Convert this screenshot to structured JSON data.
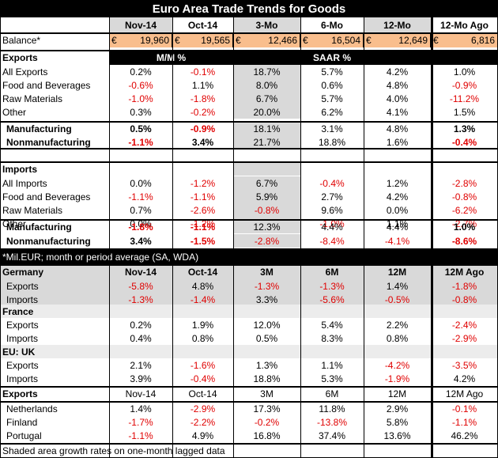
{
  "title": "Euro Area Trade Trends for Goods",
  "header": {
    "cols": [
      "Nov-14",
      "Oct-14",
      "3-Mo",
      "6-Mo",
      "12-Mo",
      "12-Mo Ago"
    ]
  },
  "balance": {
    "label": "Balance*",
    "currency": "€",
    "values": [
      "19,960",
      "19,565",
      "12,466",
      "16,504",
      "12,649",
      "6,816"
    ]
  },
  "exports_header": {
    "label": "Exports",
    "mm": "M/M %",
    "saar": "SAAR %"
  },
  "exports": [
    {
      "label": "All Exports",
      "values": [
        "0.2%",
        "-0.1%",
        "18.7%",
        "5.7%",
        "4.2%",
        "1.0%"
      ]
    },
    {
      "label": "Food and Beverages",
      "values": [
        "-0.6%",
        "1.1%",
        "8.0%",
        "0.6%",
        "4.8%",
        "-0.9%"
      ]
    },
    {
      "label": "Raw Materials",
      "values": [
        "-1.0%",
        "-1.8%",
        "6.7%",
        "5.7%",
        "4.0%",
        "-11.2%"
      ]
    },
    {
      "label": "Other",
      "values": [
        "0.3%",
        "-0.2%",
        "20.0%",
        "6.2%",
        "4.1%",
        "1.5%"
      ]
    },
    {
      "label": "Manufacturing",
      "values": [
        "0.5%",
        "-0.9%",
        "18.1%",
        "3.1%",
        "4.8%",
        "1.3%"
      ]
    },
    {
      "label": "Nonmanufacturing",
      "values": [
        "-1.1%",
        "3.4%",
        "21.7%",
        "18.8%",
        "1.6%",
        "-0.4%"
      ]
    }
  ],
  "imports_header": {
    "label": "Imports"
  },
  "imports": [
    {
      "label": "All Imports",
      "values": [
        "0.0%",
        "-1.2%",
        "6.7%",
        "-0.4%",
        "1.2%",
        "-2.8%"
      ]
    },
    {
      "label": "Food and Beverages",
      "values": [
        "-1.1%",
        "-1.1%",
        "5.9%",
        "2.7%",
        "4.2%",
        "-0.8%"
      ]
    },
    {
      "label": "Raw Materials",
      "values": [
        "0.7%",
        "-2.6%",
        "-0.8%",
        "9.6%",
        "0.0%",
        "-6.2%"
      ]
    },
    {
      "label": "Other",
      "values": [
        "0.0%",
        "-1.2%",
        "7.2%",
        "-1.0%",
        "1.1%",
        "-2.7%"
      ]
    },
    {
      "label": "Manufacturing",
      "values": [
        "-1.8%",
        "-1.1%",
        "12.3%",
        "4.4%",
        "4.4%",
        "1.0%"
      ]
    },
    {
      "label": "Nonmanufacturing",
      "values": [
        "3.4%",
        "-1.5%",
        "-2.8%",
        "-8.4%",
        "-4.1%",
        "-8.6%"
      ]
    }
  ],
  "note": "*Mil.EUR; month or period average (SA, WDA)",
  "country_header": {
    "label": "Germany",
    "cols": [
      "Nov-14",
      "Oct-14",
      "3M",
      "6M",
      "12M",
      "12M Ago"
    ]
  },
  "germany": [
    {
      "label": "Exports",
      "values": [
        "-5.8%",
        "4.8%",
        "-1.3%",
        "-1.3%",
        "1.4%",
        "-1.8%"
      ]
    },
    {
      "label": "Imports",
      "values": [
        "-1.3%",
        "-1.4%",
        "3.3%",
        "-5.6%",
        "-0.5%",
        "-0.8%"
      ]
    }
  ],
  "france_label": "France",
  "france": [
    {
      "label": "Exports",
      "values": [
        "0.2%",
        "1.9%",
        "12.0%",
        "5.4%",
        "2.2%",
        "-2.4%"
      ]
    },
    {
      "label": "Imports",
      "values": [
        "0.4%",
        "0.8%",
        "0.5%",
        "8.3%",
        "0.8%",
        "-2.9%"
      ]
    }
  ],
  "uk_label": "EU: UK",
  "uk": [
    {
      "label": "Exports",
      "values": [
        "2.1%",
        "-1.6%",
        "1.3%",
        "1.1%",
        "-4.2%",
        "-3.5%"
      ]
    },
    {
      "label": "Imports",
      "values": [
        "3.9%",
        "-0.4%",
        "18.8%",
        "5.3%",
        "-1.9%",
        "4.2%"
      ]
    }
  ],
  "exports2_header": {
    "label": "Exports",
    "cols": [
      "Nov-14",
      "Oct-14",
      "3M",
      "6M",
      "12M",
      "12M Ago"
    ]
  },
  "exports2": [
    {
      "label": "Netherlands",
      "values": [
        "1.4%",
        "-2.9%",
        "17.3%",
        "11.8%",
        "2.9%",
        "-0.1%"
      ]
    },
    {
      "label": "Finland",
      "values": [
        "-1.7%",
        "-2.2%",
        "-0.2%",
        "-13.8%",
        "5.8%",
        "-1.1%"
      ]
    },
    {
      "label": "Portugal",
      "values": [
        "-1.1%",
        "4.9%",
        "16.8%",
        "37.4%",
        "13.6%",
        "46.2%"
      ]
    }
  ],
  "footer": "Shaded area growth rates on one-month lagged data"
}
